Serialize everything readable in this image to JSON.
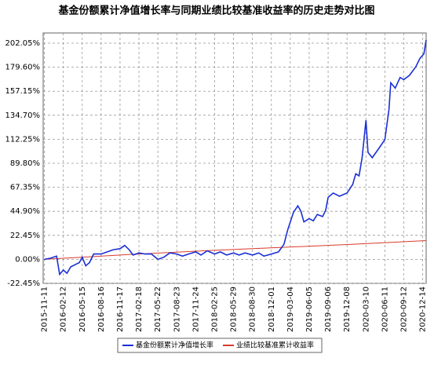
{
  "chart_data": {
    "type": "line",
    "title": "基金份额累计净值增长率与同期业绩比较基准收益率的历史走势对比图",
    "xlim": [
      "2015-11-05",
      "2020-12-31"
    ],
    "xticks": [
      "2015-11-11",
      "2016-02-12",
      "2016-05-15",
      "2016-08-16",
      "2016-11-17",
      "2017-02-18",
      "2017-05-22",
      "2017-08-23",
      "2017-11-24",
      "2018-02-25",
      "2018-05-29",
      "2018-08-30",
      "2018-12-01",
      "2019-03-04",
      "2019-06-05",
      "2019-09-06",
      "2019-12-08",
      "2020-03-10",
      "2020-06-11",
      "2020-09-12",
      "2020-12-14"
    ],
    "ylim": [
      -22.45,
      211.6
    ],
    "yticks": [
      {
        "value": -22.45,
        "label": "-22.45%"
      },
      {
        "value": 0,
        "label": "0.00%"
      },
      {
        "value": 22.45,
        "label": "22.45%"
      },
      {
        "value": 44.9,
        "label": "44.90%"
      },
      {
        "value": 67.35,
        "label": "67.35%"
      },
      {
        "value": 89.8,
        "label": "89.80%"
      },
      {
        "value": 112.25,
        "label": "112.25%"
      },
      {
        "value": 134.7,
        "label": "134.70%"
      },
      {
        "value": 157.15,
        "label": "157.15%"
      },
      {
        "value": 179.6,
        "label": "179.60%"
      },
      {
        "value": 202.05,
        "label": "202.05%"
      }
    ],
    "grid": true,
    "legend": "bottom",
    "series": [
      {
        "name": "基金份额累计净值增长率",
        "color": "#1a2fd6",
        "x": [
          "2015-11-10",
          "2015-12-10",
          "2016-01-10",
          "2016-01-25",
          "2016-02-12",
          "2016-03-01",
          "2016-03-20",
          "2016-04-10",
          "2016-05-01",
          "2016-05-15",
          "2016-06-01",
          "2016-06-20",
          "2016-07-10",
          "2016-08-16",
          "2016-09-15",
          "2016-10-15",
          "2016-11-17",
          "2016-12-10",
          "2017-01-01",
          "2017-01-20",
          "2017-02-18",
          "2017-03-20",
          "2017-04-20",
          "2017-05-22",
          "2017-06-20",
          "2017-07-20",
          "2017-08-23",
          "2017-09-20",
          "2017-10-20",
          "2017-11-24",
          "2017-12-20",
          "2018-01-20",
          "2018-02-25",
          "2018-03-25",
          "2018-04-25",
          "2018-05-29",
          "2018-06-25",
          "2018-07-25",
          "2018-08-30",
          "2018-09-30",
          "2018-10-25",
          "2018-12-01",
          "2019-01-05",
          "2019-02-01",
          "2019-02-20",
          "2019-03-04",
          "2019-03-20",
          "2019-04-10",
          "2019-04-25",
          "2019-05-10",
          "2019-06-05",
          "2019-06-25",
          "2019-07-15",
          "2019-08-10",
          "2019-08-25",
          "2019-09-06",
          "2019-10-01",
          "2019-11-01",
          "2019-12-08",
          "2020-01-05",
          "2020-01-20",
          "2020-02-05",
          "2020-02-20",
          "2020-03-10",
          "2020-03-20",
          "2020-04-10",
          "2020-05-10",
          "2020-06-11",
          "2020-07-01",
          "2020-07-10",
          "2020-08-01",
          "2020-08-25",
          "2020-09-12",
          "2020-10-10",
          "2020-11-10",
          "2020-12-01",
          "2020-12-20",
          "2020-12-31"
        ],
        "values": [
          0,
          1,
          3,
          -14,
          -10,
          -13,
          -7,
          -5,
          -3,
          2,
          -6,
          -3,
          5,
          5,
          7,
          9,
          10,
          13,
          9,
          4,
          6,
          5,
          5,
          0,
          2,
          6,
          5,
          3,
          5,
          7,
          4,
          8,
          5,
          7,
          4,
          6,
          4,
          6,
          4,
          6,
          3,
          5,
          7,
          14,
          28,
          35,
          44,
          50,
          45,
          35,
          38,
          36,
          42,
          40,
          46,
          58,
          62,
          59,
          62,
          70,
          80,
          78,
          95,
          130,
          100,
          95,
          103,
          112,
          140,
          165,
          160,
          170,
          168,
          172,
          180,
          188,
          192,
          205
        ]
      },
      {
        "name": "业绩比较基准累计收益率",
        "color": "#d93a2b",
        "x": [
          "2015-11-10",
          "2017-01-01",
          "2018-01-01",
          "2019-01-01",
          "2020-01-01",
          "2020-12-31"
        ],
        "values": [
          0,
          4.5,
          8,
          11,
          14,
          17.5
        ]
      }
    ]
  }
}
